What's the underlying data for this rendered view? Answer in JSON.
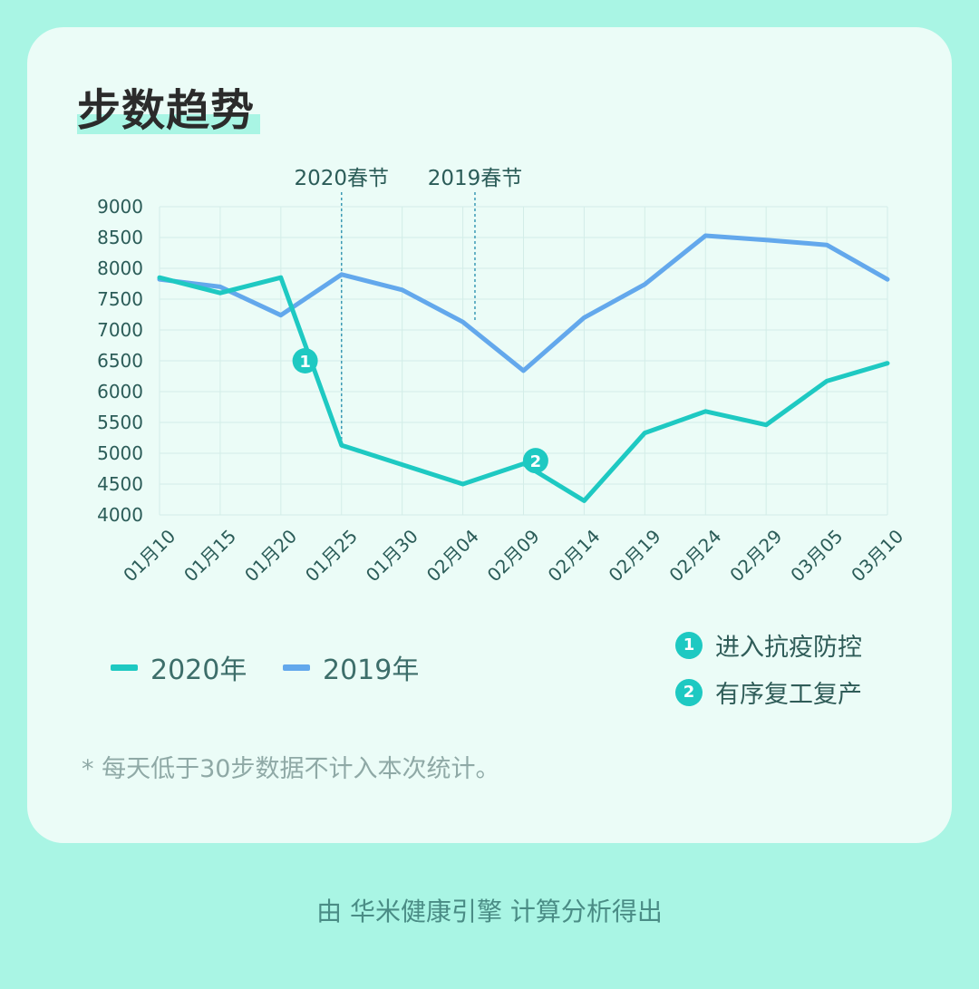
{
  "title": "步数趋势",
  "colors": {
    "series_2020": "#1ec9c2",
    "series_2019": "#63a8ec",
    "grid": "#d3ede8",
    "axis_text": "#2b5c58",
    "marker_line": "#3b9ab5",
    "badge": "#1ec9c2"
  },
  "chart_data": {
    "type": "line",
    "title": "步数趋势",
    "xlabel": "",
    "ylabel": "",
    "ylim": [
      4000,
      9000
    ],
    "y_ticks": [
      "9000",
      "8500",
      "8000",
      "7500",
      "7000",
      "6500",
      "6000",
      "5500",
      "5000",
      "4500",
      "4000"
    ],
    "x_ticks": [
      "01月10",
      "01月15",
      "01月20",
      "01月25",
      "01月30",
      "02月04",
      "02月09",
      "02月14",
      "02月19",
      "02月24",
      "02月29",
      "03月05",
      "03月10"
    ],
    "grid": true,
    "legend_position": "bottom-left",
    "series": [
      {
        "name": "2020年",
        "points": [
          {
            "x": "01月10",
            "y": 7850
          },
          {
            "x": "01月15",
            "y": 7600
          },
          {
            "x": "01月20",
            "y": 7850
          },
          {
            "x": "01月25",
            "y": 5130
          },
          {
            "x": "02月04",
            "y": 4500
          },
          {
            "x": "02月09",
            "y": 4830
          },
          {
            "x": "02月14",
            "y": 4230
          },
          {
            "x": "02月19",
            "y": 5330
          },
          {
            "x": "02月24",
            "y": 5680
          },
          {
            "x": "02月29",
            "y": 5460
          },
          {
            "x": "03月05",
            "y": 6170
          },
          {
            "x": "03月10",
            "y": 6460
          }
        ]
      },
      {
        "name": "2019年",
        "points": [
          {
            "x": "01月10",
            "y": 7820
          },
          {
            "x": "01月15",
            "y": 7700
          },
          {
            "x": "01月20",
            "y": 7240
          },
          {
            "x": "01月25",
            "y": 7900
          },
          {
            "x": "01月30",
            "y": 7650
          },
          {
            "x": "02月04",
            "y": 7130
          },
          {
            "x": "02月09",
            "y": 6340
          },
          {
            "x": "02月14",
            "y": 7200
          },
          {
            "x": "02月19",
            "y": 7740
          },
          {
            "x": "02月24",
            "y": 8530
          },
          {
            "x": "02月29",
            "y": 8460
          },
          {
            "x": "03月05",
            "y": 8380
          },
          {
            "x": "03月10",
            "y": 7820
          }
        ]
      }
    ],
    "vertical_markers": [
      {
        "label": "2020春节",
        "x": "01月25"
      },
      {
        "label": "2019春节",
        "x": "02月05"
      }
    ],
    "point_annotations": [
      {
        "badge": "1",
        "x": "01月22",
        "y": 6500
      },
      {
        "badge": "2",
        "x": "02月10",
        "y": 4880
      }
    ]
  },
  "legend": {
    "items": [
      {
        "label": "2020年"
      },
      {
        "label": "2019年"
      }
    ]
  },
  "notes": [
    {
      "badge": "1",
      "text": "进入抗疫防控"
    },
    {
      "badge": "2",
      "text": "有序复工复产"
    }
  ],
  "footnote": "* 每天低于30步数据不计入本次统计。",
  "source": "由 华米健康引擎 计算分析得出"
}
